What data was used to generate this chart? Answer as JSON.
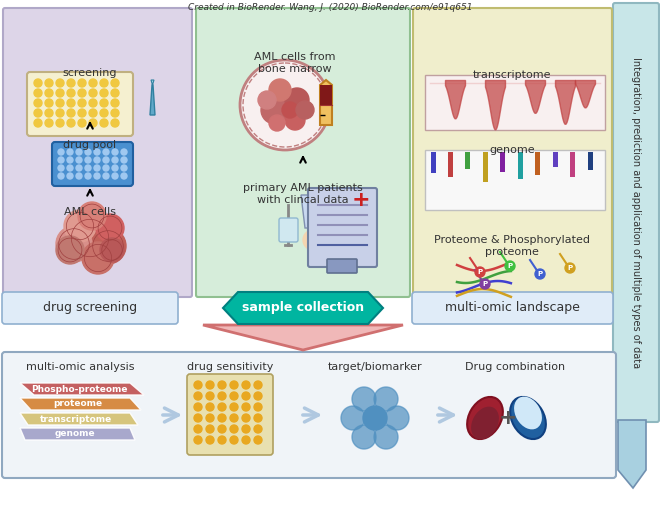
{
  "bg_color": "#ffffff",
  "top_left_box_color": "#ddd5e8",
  "top_mid_box_color": "#d6edda",
  "top_right_box_color": "#f0eecc",
  "bottom_box_color": "#e8f0f8",
  "label_box_color": "#e0ecf8",
  "side_bar_color": "#c8e6e8",
  "teal_hex_color": "#00b5a0",
  "arrow_pink": "#e8a0a0",
  "arrow_blue": "#b0c8e0",
  "title_side": "Integration, prediction and application of multiple types of data",
  "label_drug_screening": "drug screening",
  "label_sample_collection": "sample collection",
  "label_multi_omic": "multi-omic landscape",
  "caption": "Created in BioRender. Wang, J. (2020) BioRender.com/e91q651",
  "aml_cells_label": "AML cells",
  "drug_pool_label": "drug pool",
  "screening_label": "screening",
  "primary_patients_label": "primary AML patients\nwith clincal data",
  "bone_marrow_label": "AML cells from\nbone marrow",
  "proteome_label": "Proteome & Phosphorylated\nproteome",
  "genome_label": "genome",
  "transcriptome_label": "transcriptome",
  "bottom_labels": [
    "multi-omic analysis",
    "drug sensitivity",
    "target/biomarker",
    "Drug combination"
  ],
  "bottom_layer_labels": [
    "genome",
    "transcriptome",
    "proteome",
    "Phospho-proteome"
  ],
  "bottom_layer_colors": [
    "#a0a0c8",
    "#d4c070",
    "#d48030",
    "#c05050"
  ]
}
